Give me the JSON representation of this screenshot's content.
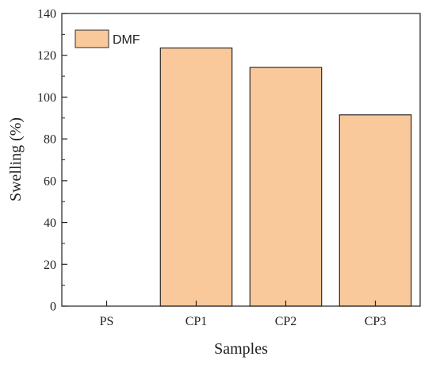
{
  "chart_data": {
    "type": "bar",
    "categories": [
      "PS",
      "CP1",
      "CP2",
      "CP3"
    ],
    "series": [
      {
        "name": "DMF",
        "values": [
          0,
          123.5,
          114.2,
          91.5
        ],
        "color": "#f9c89b",
        "edge_color": "#2b2b2b"
      }
    ],
    "xlabel": "Samples",
    "ylabel": "Swelling (%)",
    "ylim": [
      0,
      140
    ],
    "yticks": [
      0,
      20,
      40,
      60,
      80,
      100,
      120,
      140
    ],
    "grid": false,
    "legend_position": "top-left"
  }
}
